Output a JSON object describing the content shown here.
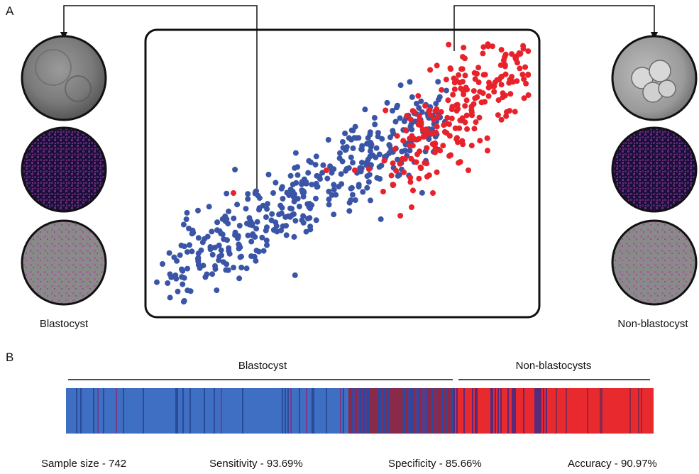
{
  "panel_a_label": "A",
  "panel_b_label": "B",
  "left_caption": "Blastocyst",
  "right_caption": "Non-blastocyst",
  "bar_left_label": "Blastocyst",
  "bar_right_label": "Non-blastocysts",
  "metrics": {
    "sample_size": "Sample size - 742",
    "sensitivity": "Sensitivity - 93.69%",
    "specificity": "Specificity - 85.66%",
    "accuracy": "Accuracy - 90.97%"
  },
  "colors": {
    "blastocyst_point": "#3a55a6",
    "non_blastocyst_point": "#e8222b",
    "bar_blue": "#3f6fc2",
    "bar_red": "#e82a2f",
    "heatmap_dark": "#1a0f3a",
    "heatmap_hot": "#d24fa0"
  },
  "image_tiles": {
    "left": [
      "brightfield-embryo-image",
      "heatmap-image",
      "overlay-image"
    ],
    "right": [
      "brightfield-embryo-image",
      "heatmap-image",
      "overlay-image"
    ]
  }
}
